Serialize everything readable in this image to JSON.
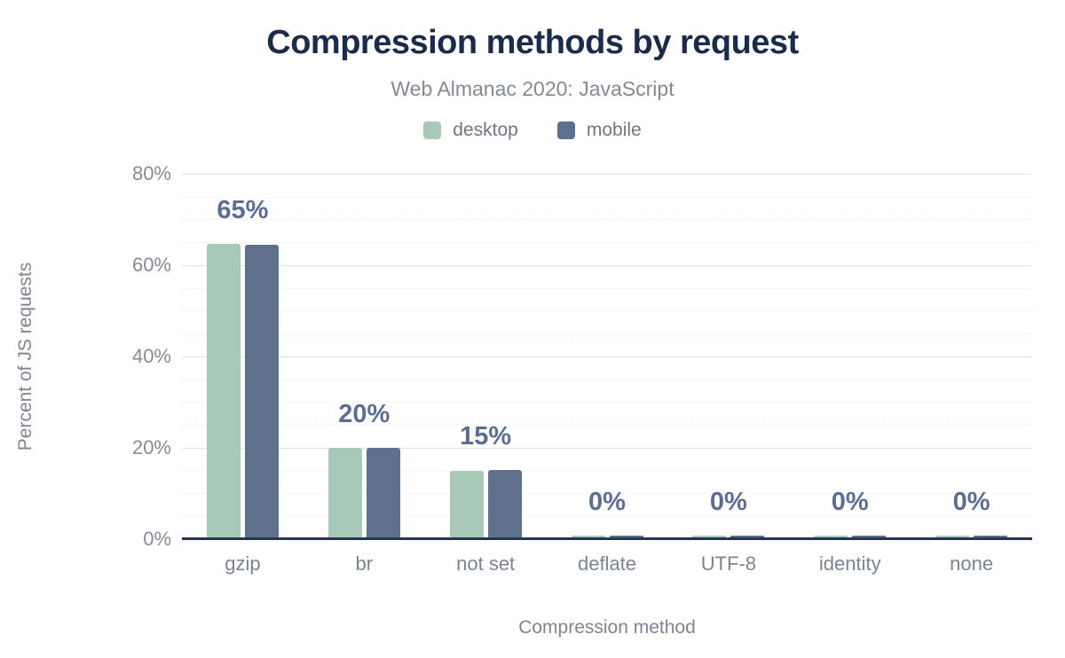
{
  "chart_data": {
    "type": "bar",
    "title": "Compression methods by request",
    "subtitle": "Web Almanac 2020: JavaScript",
    "categories": [
      "gzip",
      "br",
      "not set",
      "deflate",
      "UTF-8",
      "identity",
      "none"
    ],
    "series": [
      {
        "name": "desktop",
        "color": "#a9c9b8",
        "values": [
          64.6,
          19.9,
          15.0,
          0.2,
          0.1,
          0.1,
          0.1
        ]
      },
      {
        "name": "mobile",
        "color": "#5e708c",
        "values": [
          64.5,
          19.9,
          15.1,
          0.2,
          0.1,
          0.1,
          0.1
        ]
      }
    ],
    "bar_labels": [
      "65%",
      "20%",
      "15%",
      "0%",
      "0%",
      "0%",
      "0%"
    ],
    "xlabel": "Compression method",
    "ylabel": "Percent of JS requests",
    "ylim": [
      0,
      80
    ],
    "yticks": [
      {
        "value": 0,
        "label": "0%"
      },
      {
        "value": 20,
        "label": "20%"
      },
      {
        "value": 40,
        "label": "40%"
      },
      {
        "value": 60,
        "label": "60%"
      },
      {
        "value": 80,
        "label": "80%"
      }
    ],
    "minor_gridline_step": 5,
    "grid": true,
    "legend_position": "top"
  },
  "colors": {
    "title_text": "#1a2b4c",
    "subtitle_text": "#858a92",
    "data_label_text": "#5b6e91",
    "axis_text": "#7e8490",
    "axis_line": "#263650",
    "major_gridline": "#e1e1e1",
    "minor_gridline": "#ebebeb",
    "background": "#ffffff"
  }
}
